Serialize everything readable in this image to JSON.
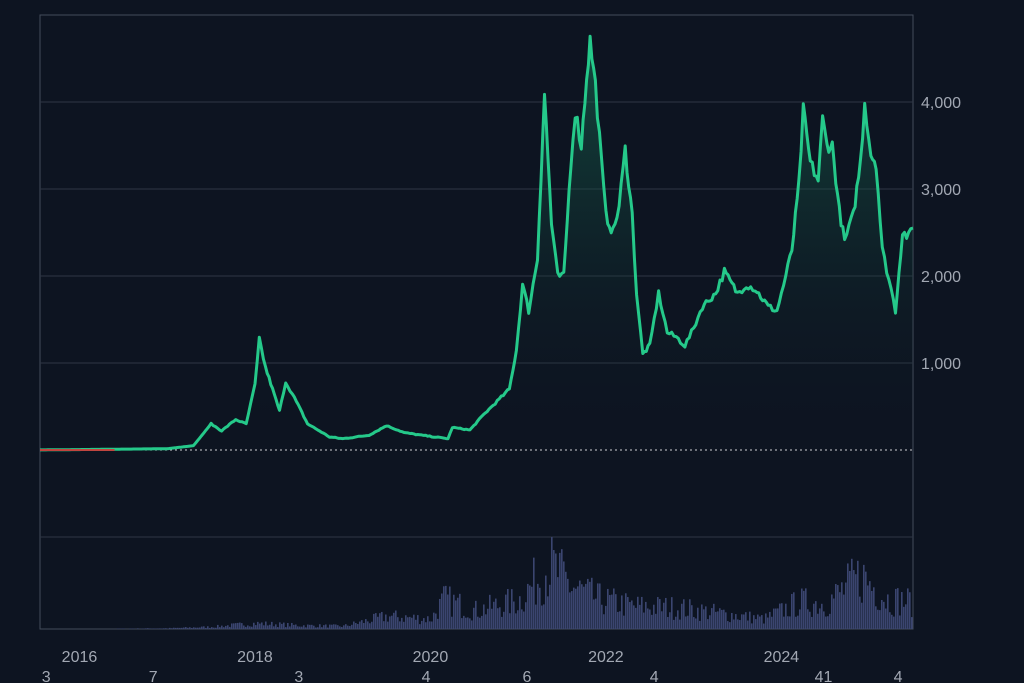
{
  "colors": {
    "background": "#0d1421",
    "grid": "#2e3645",
    "frame": "#444c5a",
    "line": "#25c98a",
    "area_top": "#1a7a5a",
    "volume": "#3b4570",
    "zero_line": "#ffffff",
    "early_segment": "#c0453f"
  },
  "chart_data": {
    "type": "area",
    "title": "",
    "xlabel": "",
    "ylabel": "",
    "x_domain": [
      2015.55,
      2025.5
    ],
    "ylim": [
      -1000,
      5000
    ],
    "y_ticks": [
      {
        "value": 1000,
        "label": "1,000"
      },
      {
        "value": 2000,
        "label": "2,000"
      },
      {
        "value": 3000,
        "label": "3,000"
      },
      {
        "value": 4000,
        "label": "4,000"
      }
    ],
    "x_ticks": [
      {
        "value": 2016,
        "label": "2016"
      },
      {
        "value": 2018,
        "label": "2018"
      },
      {
        "value": 2020,
        "label": "2020"
      },
      {
        "value": 2022,
        "label": "2022"
      },
      {
        "value": 2024,
        "label": "2024"
      }
    ],
    "bottom_labels": [
      {
        "x": 2015.62,
        "label": "3"
      },
      {
        "x": 2016.84,
        "label": "7"
      },
      {
        "x": 2018.5,
        "label": "3"
      },
      {
        "x": 2019.95,
        "label": "4"
      },
      {
        "x": 2021.1,
        "label": "6"
      },
      {
        "x": 2022.55,
        "label": "4"
      },
      {
        "x": 2024.48,
        "label": "41"
      },
      {
        "x": 2025.33,
        "label": "4"
      }
    ],
    "series": [
      {
        "values": [
          [
            2015.55,
            1
          ],
          [
            2016.0,
            5
          ],
          [
            2016.5,
            10
          ],
          [
            2017.0,
            15
          ],
          [
            2017.3,
            50
          ],
          [
            2017.5,
            300
          ],
          [
            2017.62,
            220
          ],
          [
            2017.78,
            350
          ],
          [
            2017.9,
            300
          ],
          [
            2018.0,
            750
          ],
          [
            2018.05,
            1270
          ],
          [
            2018.12,
            950
          ],
          [
            2018.2,
            700
          ],
          [
            2018.28,
            450
          ],
          [
            2018.35,
            780
          ],
          [
            2018.45,
            600
          ],
          [
            2018.6,
            300
          ],
          [
            2018.85,
            150
          ],
          [
            2019.0,
            130
          ],
          [
            2019.3,
            170
          ],
          [
            2019.5,
            280
          ],
          [
            2019.7,
            200
          ],
          [
            2019.9,
            170
          ],
          [
            2020.2,
            130
          ],
          [
            2020.25,
            260
          ],
          [
            2020.45,
            230
          ],
          [
            2020.6,
            400
          ],
          [
            2020.9,
            700
          ],
          [
            2020.98,
            1150
          ],
          [
            2021.05,
            1900
          ],
          [
            2021.12,
            1600
          ],
          [
            2021.22,
            2200
          ],
          [
            2021.3,
            4100
          ],
          [
            2021.38,
            2600
          ],
          [
            2021.45,
            2000
          ],
          [
            2021.52,
            2000
          ],
          [
            2021.6,
            3300
          ],
          [
            2021.65,
            3900
          ],
          [
            2021.72,
            3500
          ],
          [
            2021.78,
            4300
          ],
          [
            2021.82,
            4700
          ],
          [
            2021.88,
            4200
          ],
          [
            2021.95,
            3300
          ],
          [
            2022.0,
            2700
          ],
          [
            2022.08,
            2500
          ],
          [
            2022.15,
            2800
          ],
          [
            2022.22,
            3450
          ],
          [
            2022.3,
            2700
          ],
          [
            2022.35,
            1800
          ],
          [
            2022.42,
            1100
          ],
          [
            2022.5,
            1200
          ],
          [
            2022.6,
            1800
          ],
          [
            2022.7,
            1350
          ],
          [
            2022.8,
            1300
          ],
          [
            2022.9,
            1200
          ],
          [
            2023.0,
            1400
          ],
          [
            2023.1,
            1650
          ],
          [
            2023.25,
            1800
          ],
          [
            2023.35,
            2050
          ],
          [
            2023.5,
            1800
          ],
          [
            2023.6,
            1900
          ],
          [
            2023.7,
            1850
          ],
          [
            2023.85,
            1650
          ],
          [
            2023.95,
            1600
          ],
          [
            2024.05,
            2000
          ],
          [
            2024.12,
            2300
          ],
          [
            2024.2,
            3050
          ],
          [
            2024.25,
            3900
          ],
          [
            2024.33,
            3300
          ],
          [
            2024.42,
            3100
          ],
          [
            2024.47,
            3800
          ],
          [
            2024.52,
            3500
          ],
          [
            2024.58,
            3500
          ],
          [
            2024.66,
            2750
          ],
          [
            2024.72,
            2400
          ],
          [
            2024.82,
            2700
          ],
          [
            2024.9,
            3300
          ],
          [
            2024.95,
            4000
          ],
          [
            2025.02,
            3400
          ],
          [
            2025.08,
            3300
          ],
          [
            2025.15,
            2300
          ],
          [
            2025.25,
            1850
          ],
          [
            2025.3,
            1600
          ],
          [
            2025.38,
            2500
          ],
          [
            2025.45,
            2450
          ],
          [
            2025.5,
            2550
          ]
        ]
      }
    ],
    "volume": [
      [
        2016.0,
        0
      ],
      [
        2017.0,
        1
      ],
      [
        2017.5,
        3
      ],
      [
        2018.0,
        8
      ],
      [
        2018.5,
        5
      ],
      [
        2019.0,
        4
      ],
      [
        2019.5,
        18
      ],
      [
        2020.0,
        14
      ],
      [
        2020.15,
        42
      ],
      [
        2020.5,
        26
      ],
      [
        2021.0,
        40
      ],
      [
        2021.35,
        90
      ],
      [
        2021.6,
        60
      ],
      [
        2021.9,
        42
      ],
      [
        2022.3,
        32
      ],
      [
        2022.8,
        30
      ],
      [
        2023.3,
        22
      ],
      [
        2023.8,
        14
      ],
      [
        2024.2,
        38
      ],
      [
        2024.5,
        36
      ],
      [
        2024.9,
        75
      ],
      [
        2025.2,
        42
      ],
      [
        2025.5,
        38
      ]
    ]
  }
}
